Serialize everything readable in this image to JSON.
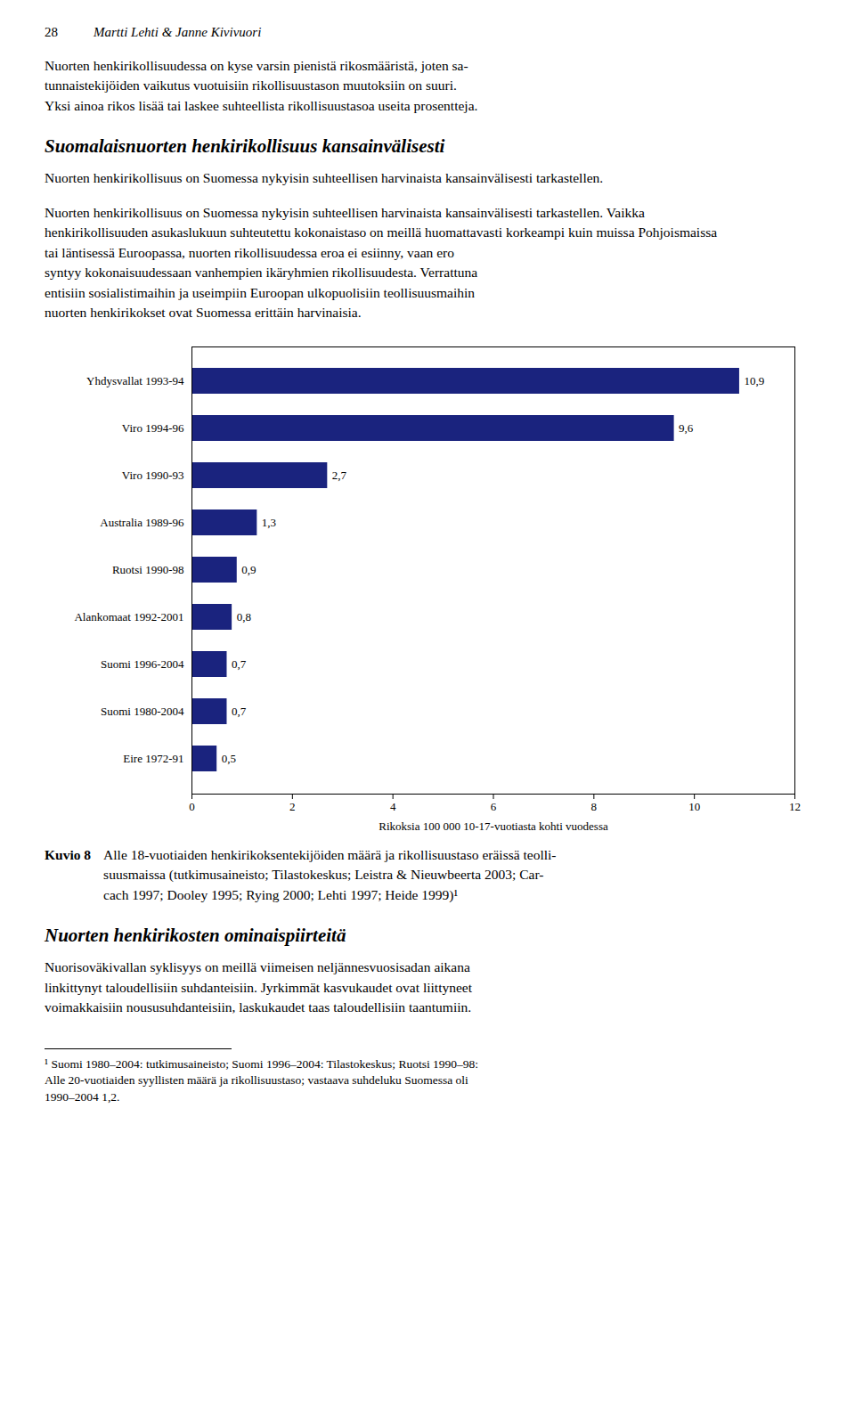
{
  "chart_data": {
    "type": "bar",
    "orientation": "horizontal",
    "categories": [
      "Yhdysvallat 1993-94",
      "Viro 1994-96",
      "Viro 1990-93",
      "Australia 1989-96",
      "Ruotsi 1990-98",
      "Alankomaat 1992-2001",
      "Suomi 1996-2004",
      "Suomi 1980-2004",
      "Eire 1972-91"
    ],
    "values": [
      10.9,
      9.6,
      2.7,
      1.3,
      0.9,
      0.8,
      0.7,
      0.7,
      0.5
    ],
    "value_labels": [
      "10,9",
      "9,6",
      "2,7",
      "1,3",
      "0,9",
      "0,8",
      "0,7",
      "0,7",
      "0,5"
    ],
    "data_labels": true,
    "color": "#1a237e",
    "xlabel": "Rikoksia 100 000 10-17-vuotiasta kohti vuodessa",
    "xlim": [
      0,
      12
    ],
    "xticks": [
      0,
      2,
      4,
      6,
      8,
      10,
      12
    ],
    "grid": false,
    "annotations": [
      "28",
      "Martti Lehti & Janne Kivivuori",
      "Nuorten henkirikollisuudessa on kyse varsin pienistä rikosmääristä, joten sa-\ntunnaistekijöiden vaikutus vuotuisiin rikollisuustason muutoksiin on suuri.\nYksi ainoa rikos lisää tai laskee suhteellista rikollisuustasoa useita prosentteja.",
      "Suomalaisnuorten henkirikollisuus kansainvälisesti",
      "Nuorten henkirikollisuus on Suomessa nykyisin suhteellisen harvinaista kansainvälisesti tarkastellen.",
      "Nuorten henkirikollisuus on Suomessa nykyisin suhteellisen harvinaista kansainvälisesti tarkastellen. Vaikka\nhenkirikollisuuden asukaslukuun suhteutettu kokonaistaso on meillä huomattavasti korkeampi kuin muissa Pohjoismaissa\ntai läntisessä Euroopassa, nuorten rikollisuudessa eroa ei esiinny, vaan ero\nsyntyy kokonaisuudessaan vanhempien ikäryhmien rikollisuudesta. Verrattuna\nentisiin sosialistimaihin ja useimpiin Euroopan ulkopuolisiin teollisuusmaihin\nnuorten henkirikokset ovat Suomessa erittäin harvinaisia.",
      "Kuvio 8",
      "Alle 18-vuotiaiden henkirikoksentekijöiden määrä ja rikollisuustaso eräissä teolli-\nsuusmaissa (tutkimusaineisto; Tilastokeskus; Leistra & Nieuwbeerta 2003; Car-\ncach 1997; Dooley 1995; Rying 2000; Lehti 1997; Heide 1999)¹",
      "Nuorten henkirikosten ominaispiirteitä",
      "Nuorisoväkivallan syklisyys on meillä viimeisen neljännesvuosisadan aikana\nlinkittynyt taloudellisiin suhdanteisiin. Jyrkimmät kasvukaudet ovat liittyneet\nvoimakkaisiin noususuhdanteisiin, laskukaudet taas taloudellisiin taantumiin.",
      "¹ Suomi 1980–2004: tutkimusaineisto; Suomi 1996–2004: Tilastokeskus; Ruotsi 1990–98:\nAlle 20-vuotiaiden syyllisten määrä ja rikollisuustaso; vastaava suhdeluku Suomessa oli\n1990–2004 1,2."
    ]
  }
}
